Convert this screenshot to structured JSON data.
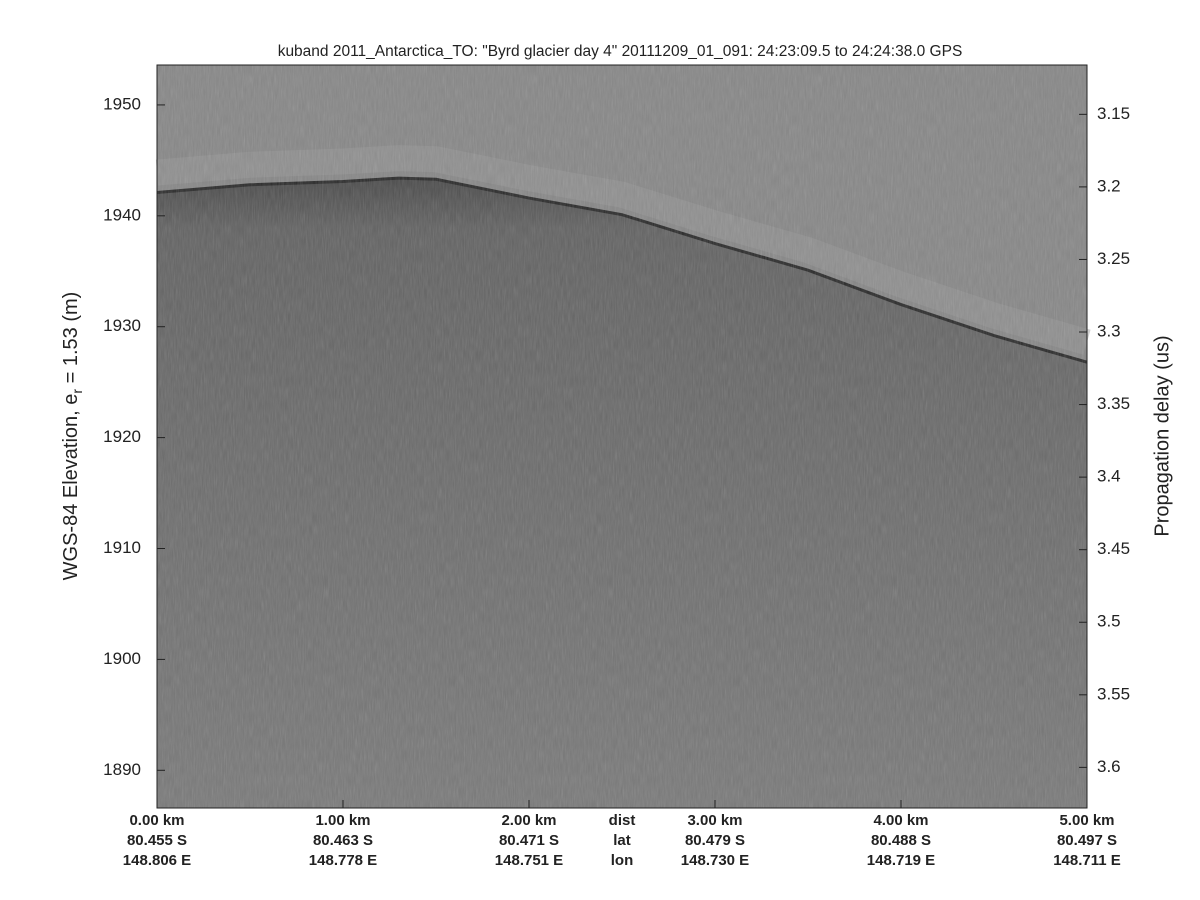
{
  "chart_data": {
    "type": "echogram",
    "title": "kuband 2011_Antarctica_TO: \"Byrd glacier day 4\"  20111209_01_091: 24:23:09.5 to 24:24:38.0 GPS",
    "ylabel": {
      "prefix": "WGS-84 Elevation, e",
      "subscript": "r",
      "suffix": " = 1.53 (m)"
    },
    "y2label": "Propagation delay (us)",
    "xlim": [
      0,
      5
    ],
    "xticks": [
      {
        "value": 0,
        "label": "0.00 km"
      },
      {
        "value": 1,
        "label": "1.00 km"
      },
      {
        "value": 2,
        "label": "2.00 km"
      },
      {
        "value": 3,
        "label": "3.00 km"
      },
      {
        "value": 4,
        "label": "4.00 km"
      },
      {
        "value": 5,
        "label": "5.00 km"
      }
    ],
    "lat_labels": [
      "80.455 S",
      "80.463 S",
      "80.471 S",
      "80.479 S",
      "80.488 S",
      "80.497 S"
    ],
    "lon_labels": [
      "148.806 E",
      "148.778 E",
      "148.751 E",
      "148.730 E",
      "148.719 E",
      "148.711 E"
    ],
    "row_labels": [
      "dist",
      "lat",
      "lon"
    ],
    "ylim": [
      1886.6,
      1953.6
    ],
    "yticks": [
      1890,
      1900,
      1910,
      1920,
      1930,
      1940,
      1950
    ],
    "y2lim": [
      3.628,
      3.116
    ],
    "y2ticks": [
      3.15,
      3.2,
      3.25,
      3.3,
      3.35,
      3.4,
      3.45,
      3.5,
      3.55,
      3.6
    ],
    "series": [
      {
        "name": "surface",
        "color": "#2a2a2a",
        "x": [
          0,
          0.5,
          1,
          1.3,
          1.5,
          2,
          2.5,
          3,
          3.5,
          4,
          4.5,
          5
        ],
        "values": [
          1942.1,
          1942.8,
          1943.1,
          1943.4,
          1943.3,
          1941.6,
          1940.1,
          1937.5,
          1935.1,
          1932.0,
          1929.2,
          1926.8
        ]
      }
    ]
  }
}
